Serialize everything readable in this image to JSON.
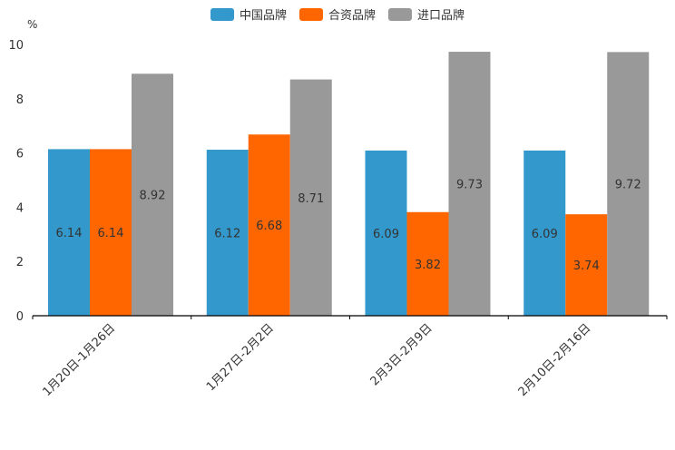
{
  "chart_data": {
    "type": "bar",
    "ylabel": "%",
    "ylim": [
      0,
      10
    ],
    "yticks": [
      "0",
      "2",
      "4",
      "6",
      "8",
      "10"
    ],
    "categories": [
      "1月20日-1月26日",
      "1月27日-2月2日",
      "2月3日-2月9日",
      "2月10日-2月16日"
    ],
    "series": [
      {
        "name": "中国品牌",
        "color": "#3399cc",
        "values": [
          6.14,
          6.12,
          6.09,
          6.09
        ]
      },
      {
        "name": "合资品牌",
        "color": "#ff6600",
        "values": [
          6.14,
          6.68,
          3.82,
          3.74
        ]
      },
      {
        "name": "进口品牌",
        "color": "#999999",
        "values": [
          8.92,
          8.71,
          9.73,
          9.72
        ]
      }
    ],
    "legend": "top-center"
  }
}
